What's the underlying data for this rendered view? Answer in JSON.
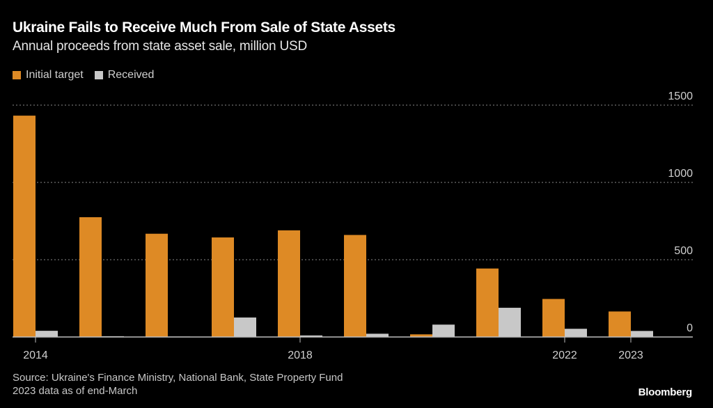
{
  "header": {
    "title": "Ukraine Fails to Receive Much From Sale of State Assets",
    "subtitle": "Annual proceeds from state asset sale, million USD"
  },
  "legend": [
    {
      "label": "Initial target",
      "color": "#de8a25"
    },
    {
      "label": "Received",
      "color": "#c8c8c8"
    }
  ],
  "footer": {
    "source": "Source: Ukraine's Finance Ministry, National Bank, State Property Fund",
    "note": "2023 data as of end-March",
    "brand": "Bloomberg"
  },
  "colors": {
    "background": "#000000",
    "target": "#de8a25",
    "received": "#c8c8c8",
    "grid": "#8a8a8a",
    "axis": "#bdbdbd"
  },
  "chart_data": {
    "type": "bar",
    "title": "Ukraine Fails to Receive Much From Sale of State Assets",
    "subtitle": "Annual proceeds from state asset sale, million USD",
    "xlabel": "",
    "ylabel": "million USD",
    "categories": [
      "2014",
      "2015",
      "2016",
      "2017",
      "2018",
      "2019",
      "2020",
      "2021",
      "2022",
      "2023"
    ],
    "x_tick_labels": [
      {
        "category": "2014",
        "label": "2014"
      },
      {
        "category": "2018",
        "label": "2018"
      },
      {
        "category": "2022",
        "label": "2022"
      },
      {
        "category": "2023",
        "label": "2023"
      }
    ],
    "series": [
      {
        "name": "Initial target",
        "color": "#de8a25",
        "values": [
          1432,
          775,
          668,
          644,
          690,
          660,
          17,
          443,
          246,
          165
        ]
      },
      {
        "name": "Received",
        "color": "#c8c8c8",
        "values": [
          40,
          5,
          3,
          126,
          10,
          21,
          80,
          189,
          53,
          39
        ]
      }
    ],
    "y_ticks": [
      0,
      500,
      1000,
      1500
    ],
    "ylim": [
      0,
      1500
    ],
    "y_axis_position": "right",
    "grid": true,
    "legend_position": "top-left"
  }
}
